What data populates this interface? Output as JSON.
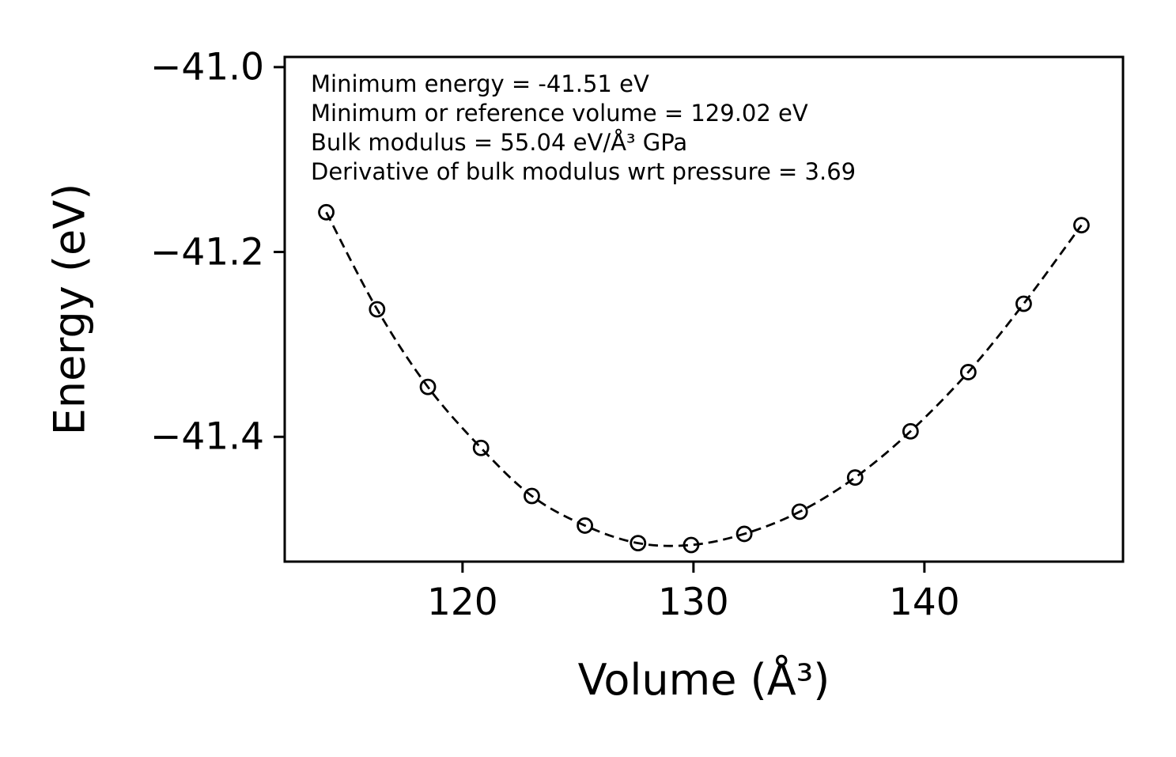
{
  "chart_data": {
    "type": "scatter",
    "title": "",
    "xlabel": "Volume (Å³)",
    "ylabel": "Energy (eV)",
    "xlim": [
      112.3,
      148.6
    ],
    "ylim": [
      -41.535,
      -40.989
    ],
    "xticks": [
      120,
      130,
      140
    ],
    "xtick_labels": [
      "120",
      "130",
      "140"
    ],
    "yticks": [
      -41.0,
      -41.2,
      -41.4
    ],
    "ytick_labels": [
      "−41.0",
      "−41.2",
      "−41.4"
    ],
    "grid": false,
    "legend": "none",
    "line_style": "dashed",
    "marker": "open-circle",
    "color": "#000000",
    "series": [
      {
        "name": "energy-volume-points",
        "x": [
          114.1,
          116.3,
          118.5,
          120.8,
          123.0,
          125.3,
          127.6,
          129.9,
          132.2,
          134.6,
          137.0,
          139.4,
          141.9,
          144.3,
          146.8
        ],
        "y": [
          -41.157,
          -41.262,
          -41.346,
          -41.412,
          -41.464,
          -41.496,
          -41.515,
          -41.517,
          -41.505,
          -41.481,
          -41.444,
          -41.394,
          -41.33,
          -41.256,
          -41.171
        ]
      }
    ],
    "annotations": [
      "Minimum energy = -41.51 eV",
      "Minimum or reference volume = 129.02 eV",
      "Bulk modulus = 55.04 eV/Å³ GPa",
      "Derivative of bulk modulus wrt pressure = 3.69"
    ],
    "fit_results": {
      "minimum_energy_eV": "-41.51",
      "minimum_or_reference_volume": "129.02",
      "bulk_modulus": "55.04",
      "bulk_modulus_pressure_derivative": "3.69"
    }
  }
}
